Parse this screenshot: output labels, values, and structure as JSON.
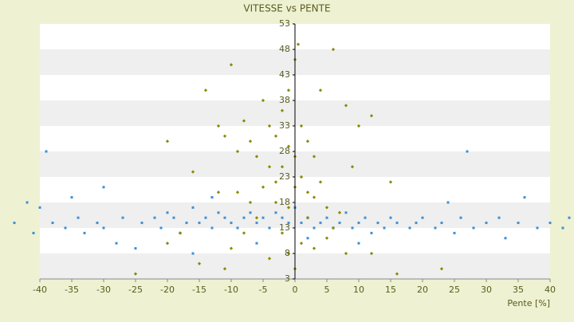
{
  "chart_data": {
    "type": "scatter",
    "title": "VITESSE vs PENTE",
    "x_label": "Pente [%]",
    "xlim": [
      -40,
      40
    ],
    "xticks": [
      -40,
      -35,
      -30,
      -25,
      -20,
      -15,
      -10,
      -5,
      0,
      5,
      10,
      15,
      20,
      25,
      30,
      35,
      40
    ],
    "ylim": [
      3,
      53
    ],
    "yticks": [
      3,
      8,
      13,
      18,
      23,
      28,
      33,
      38,
      43,
      48,
      53
    ],
    "grid": true,
    "series": [
      {
        "color": "#3d8fd6",
        "x": [
          -44,
          -42,
          -41,
          -40,
          -39,
          -38,
          -36,
          -35,
          -34,
          -33,
          -31,
          -30,
          -28,
          -27,
          -25,
          -24,
          -22,
          -21,
          -20,
          -19,
          -18,
          -17,
          -16,
          -15,
          -14,
          -13,
          -12,
          -11,
          -10,
          -9,
          -8,
          -7,
          -6,
          -5,
          -4,
          -3,
          -2,
          -1,
          0,
          1,
          2,
          3,
          4,
          5,
          6,
          7,
          8,
          9,
          10,
          11,
          12,
          13,
          14,
          15,
          16,
          18,
          19,
          20,
          22,
          23,
          25,
          26,
          27,
          28,
          30,
          32,
          33,
          35,
          36,
          38,
          40,
          42,
          43,
          -16,
          -6,
          2,
          10,
          -30,
          24,
          -13
        ],
        "y": [
          14,
          18,
          12,
          17,
          28,
          14,
          13,
          19,
          15,
          12,
          14,
          13,
          10,
          15,
          9,
          14,
          15,
          13,
          16,
          15,
          12,
          14,
          17,
          14,
          15,
          13,
          16,
          15,
          14,
          13,
          15,
          16,
          14,
          15,
          13,
          16,
          15,
          14,
          17,
          14,
          15,
          13,
          14,
          15,
          13,
          14,
          16,
          13,
          14,
          15,
          12,
          14,
          13,
          15,
          14,
          13,
          14,
          15,
          13,
          14,
          12,
          15,
          28,
          13,
          14,
          15,
          11,
          14,
          19,
          13,
          14,
          13,
          15,
          8,
          10,
          11,
          10,
          21,
          18,
          19
        ]
      },
      {
        "color": "#8a8a00",
        "x": [
          -10,
          -14,
          -12,
          -11,
          -9,
          -8,
          -7,
          -6,
          -5,
          -4,
          -3,
          -2,
          -1,
          0,
          0.5,
          1,
          2,
          3,
          4,
          6,
          8,
          10,
          12,
          -20,
          -16,
          -3,
          -2,
          -1,
          0,
          1,
          2,
          3,
          4,
          5,
          7,
          -7,
          -5,
          -4,
          -6,
          -8,
          -10,
          -12,
          -2,
          -1,
          0,
          1,
          3,
          5,
          6,
          8,
          -15,
          -11,
          -4,
          -3,
          -1,
          0,
          2,
          9,
          12,
          16,
          23,
          -25,
          -20,
          -18,
          15,
          -9
        ],
        "y": [
          45,
          40,
          33,
          31,
          28,
          34,
          30,
          27,
          38,
          33,
          31,
          36,
          40,
          46,
          49,
          33,
          30,
          27,
          40,
          48,
          37,
          33,
          35,
          30,
          24,
          22,
          25,
          29,
          27,
          23,
          20,
          19,
          22,
          17,
          16,
          18,
          21,
          25,
          15,
          12,
          9,
          20,
          12,
          8,
          5,
          10,
          9,
          11,
          13,
          8,
          6,
          5,
          7,
          18,
          17,
          21,
          15,
          25,
          8,
          4,
          5,
          4,
          10,
          12,
          22,
          20
        ]
      }
    ]
  }
}
